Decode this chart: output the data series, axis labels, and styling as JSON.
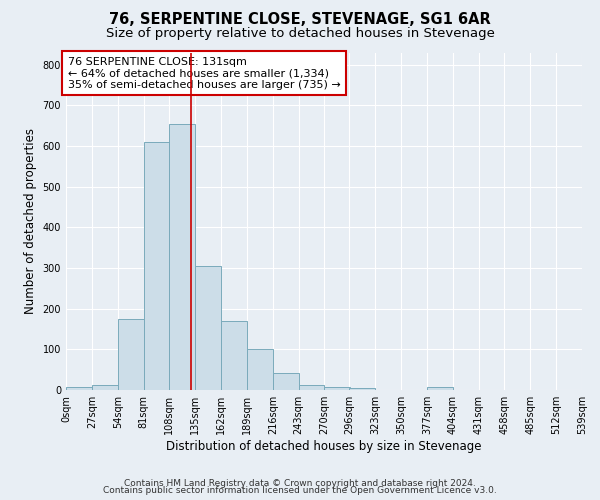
{
  "title": "76, SERPENTINE CLOSE, STEVENAGE, SG1 6AR",
  "subtitle": "Size of property relative to detached houses in Stevenage",
  "xlabel": "Distribution of detached houses by size in Stevenage",
  "ylabel": "Number of detached properties",
  "bin_starts": [
    0,
    27,
    54,
    81,
    108,
    135,
    162,
    189,
    216,
    243,
    270,
    296,
    323,
    350,
    377,
    404,
    431,
    458,
    485,
    512
  ],
  "bin_width": 27,
  "bar_heights": [
    8,
    13,
    175,
    610,
    655,
    305,
    170,
    100,
    42,
    13,
    8,
    5,
    0,
    0,
    8,
    0,
    0,
    0,
    0,
    0
  ],
  "bar_color": "#ccdde8",
  "bar_edgecolor": "#7aaabb",
  "property_size": 131,
  "vline_color": "#cc0000",
  "annotation_line1": "76 SERPENTINE CLOSE: 131sqm",
  "annotation_line2": "← 64% of detached houses are smaller (1,334)",
  "annotation_line3": "35% of semi-detached houses are larger (735) →",
  "annotation_box_edgecolor": "#cc0000",
  "annotation_box_facecolor": "#ffffff",
  "ylim": [
    0,
    830
  ],
  "yticks": [
    0,
    100,
    200,
    300,
    400,
    500,
    600,
    700,
    800
  ],
  "tick_labels": [
    "0sqm",
    "27sqm",
    "54sqm",
    "81sqm",
    "108sqm",
    "135sqm",
    "162sqm",
    "189sqm",
    "216sqm",
    "243sqm",
    "270sqm",
    "296sqm",
    "323sqm",
    "350sqm",
    "377sqm",
    "404sqm",
    "431sqm",
    "458sqm",
    "485sqm",
    "512sqm",
    "539sqm"
  ],
  "footer_line1": "Contains HM Land Registry data © Crown copyright and database right 2024.",
  "footer_line2": "Contains public sector information licensed under the Open Government Licence v3.0.",
  "background_color": "#e8eef4",
  "plot_bg_color": "#e8eef4",
  "grid_color": "#ffffff",
  "title_fontsize": 10.5,
  "subtitle_fontsize": 9.5,
  "axis_label_fontsize": 8.5,
  "tick_fontsize": 7,
  "annotation_fontsize": 8,
  "footer_fontsize": 6.5
}
